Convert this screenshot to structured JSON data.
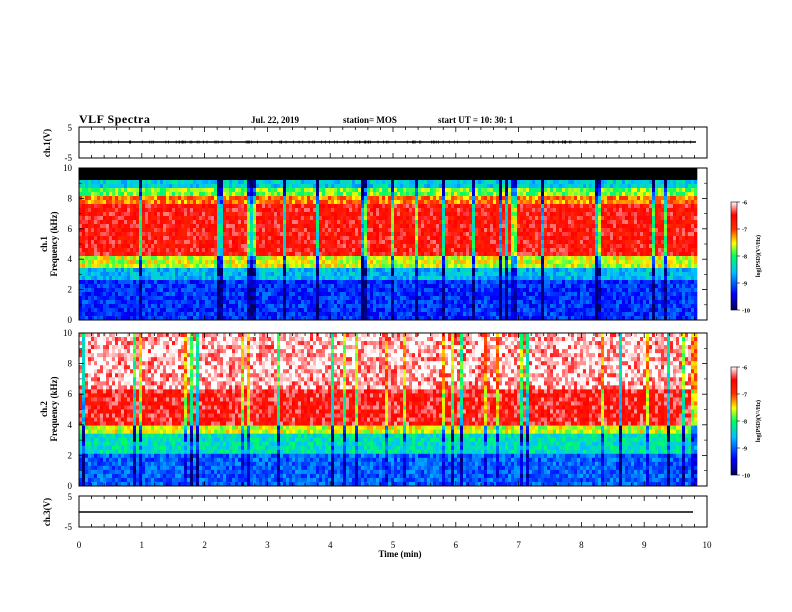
{
  "header": {
    "title": "VLF Spectra",
    "date": "Jul. 22, 2019",
    "station": "station= MOS",
    "start": "start UT =   10: 30: 1"
  },
  "colors": {
    "background_spectrogram": "#000000",
    "colorbar": [
      "#000080",
      "#0000ff",
      "#00bfff",
      "#00ff80",
      "#ffff00",
      "#ff4000",
      "#ff0000",
      "#ffffff"
    ]
  },
  "chart_data": [
    {
      "type": "line",
      "panel": "ch1-waveform",
      "ylabel": "ch.1(V)",
      "ylim": [
        -5,
        5
      ],
      "yticks": [
        -5,
        5
      ],
      "x": [
        0,
        9.83
      ],
      "values": [
        -1,
        -1
      ],
      "xlim": [
        0,
        10
      ]
    },
    {
      "type": "heatmap",
      "panel": "ch1-spectrogram",
      "ylabel": "ch.1\nFrequency (kHz)",
      "ylim": [
        0,
        10
      ],
      "yticks": [
        0,
        2,
        4,
        6,
        8,
        10
      ],
      "xlim": [
        0,
        10
      ],
      "x_extent": [
        0,
        9.83
      ],
      "colorbar": {
        "label": "log(PSD)(V²/Hz)",
        "range": [
          -10,
          -6
        ],
        "ticks": [
          -6,
          -7,
          -8,
          -9,
          -10
        ]
      }
    },
    {
      "type": "heatmap",
      "panel": "ch2-spectrogram",
      "ylabel": "ch.2\nFrequency (kHz)",
      "ylim": [
        0,
        10
      ],
      "yticks": [
        0,
        2,
        4,
        6,
        8,
        10
      ],
      "xlim": [
        0,
        10
      ],
      "x_extent": [
        0,
        9.83
      ],
      "colorbar": {
        "label": "log(PSD)(V²/Hz)",
        "range": [
          -10,
          -6
        ],
        "ticks": [
          -6,
          -7,
          -8,
          -9,
          -10
        ]
      }
    },
    {
      "type": "line",
      "panel": "ch3-waveform",
      "ylabel": "ch.3(V)",
      "ylim": [
        -5,
        5
      ],
      "yticks": [
        -5,
        5
      ],
      "x": [
        0,
        9.83
      ],
      "values": [
        -1,
        -1
      ],
      "xlim": [
        0,
        10
      ]
    }
  ],
  "xaxis": {
    "label": "Time (min)",
    "ticks": [
      "0",
      "1",
      "2",
      "3",
      "4",
      "5",
      "6",
      "7",
      "8",
      "9",
      "10"
    ]
  }
}
